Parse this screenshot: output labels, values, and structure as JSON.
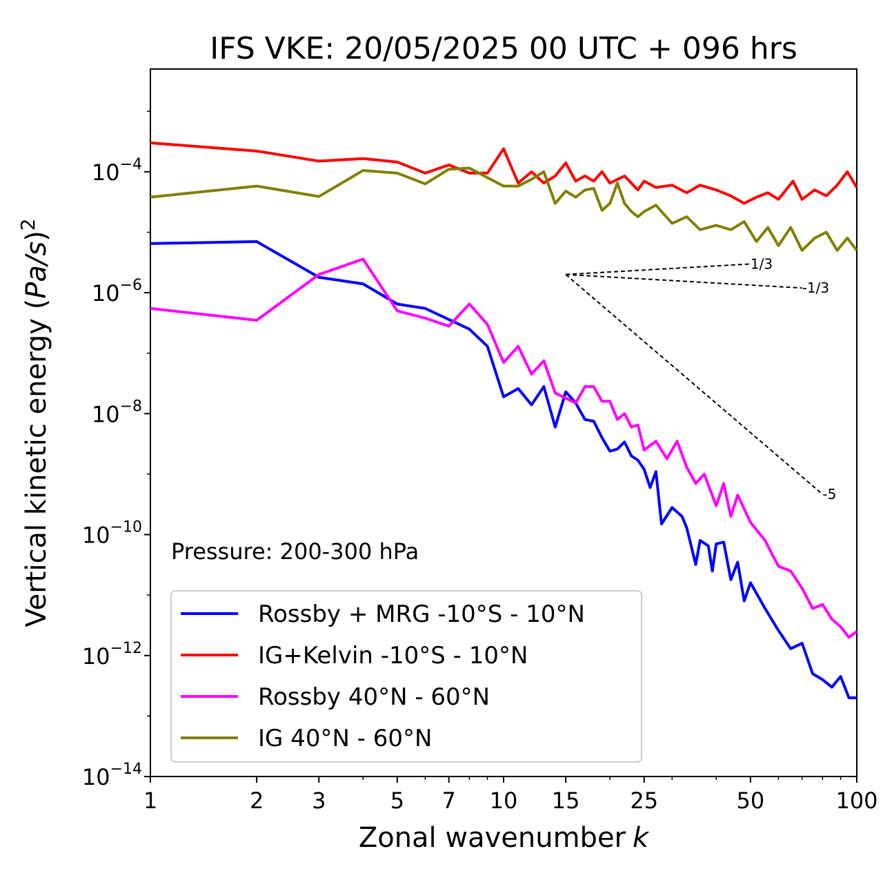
{
  "chart_data": {
    "type": "line",
    "title": "IFS VKE: 20/05/2025 00 UTC + 096 hrs",
    "xlabel": "Zonal wavenumber",
    "xlabel_var": "k",
    "ylabel": "Vertical kinetic energy (",
    "ylabel_var": "Pa/s",
    "ylabel_close": ")",
    "ylabel_power": "2",
    "x_scale": "log",
    "y_scale": "log",
    "xlim": [
      1,
      100
    ],
    "ylim": [
      1e-14,
      0.005
    ],
    "x_ticks": [
      1,
      2,
      3,
      5,
      7,
      10,
      15,
      25,
      50,
      100
    ],
    "x_tick_labels": [
      "1",
      "2",
      "3",
      "5",
      "7",
      "10",
      "15",
      "25",
      "50",
      "100"
    ],
    "y_ticks": [
      0.0001,
      1e-06,
      1e-08,
      1e-10,
      1e-12,
      1e-14
    ],
    "y_tick_base": "10",
    "y_tick_exponents": [
      "−4",
      "−6",
      "−8",
      "−10",
      "−12",
      "−14"
    ],
    "grid": false,
    "legend_position": "lower-left",
    "annotation": "Pressure: 200-300 hPa",
    "reference_slopes": [
      {
        "label": "1/3",
        "slope": 0.3333,
        "x_start": 15,
        "x_end": 50,
        "y_start": 2e-06
      },
      {
        "label": "-1/3",
        "slope": -0.3333,
        "x_start": 15,
        "x_end": 70,
        "y_start": 2e-06
      },
      {
        "label": "-5",
        "slope": -5,
        "x_start": 15,
        "x_end": 80,
        "y_start": 2e-06
      }
    ],
    "series": [
      {
        "name": "Rossby + MRG -10°S - 10°N",
        "color": "#0000ff",
        "points": [
          [
            1,
            6.5e-06
          ],
          [
            2,
            7e-06
          ],
          [
            3,
            1.8e-06
          ],
          [
            4,
            1.4e-06
          ],
          [
            5,
            6.5e-07
          ],
          [
            6,
            5.5e-07
          ],
          [
            7,
            3.6e-07
          ],
          [
            8,
            2.5e-07
          ],
          [
            9,
            1.3e-07
          ],
          [
            10,
            1.9e-08
          ],
          [
            11,
            2.6e-08
          ],
          [
            12,
            1.4e-08
          ],
          [
            13,
            2.8e-08
          ],
          [
            14,
            6e-09
          ],
          [
            15,
            2.3e-08
          ],
          [
            16,
            1.5e-08
          ],
          [
            17,
            8e-09
          ],
          [
            18,
            7.5e-09
          ],
          [
            19,
            4e-09
          ],
          [
            20,
            2.4e-09
          ],
          [
            21,
            2.6e-09
          ],
          [
            22,
            3.4e-09
          ],
          [
            23,
            2e-09
          ],
          [
            24,
            1.7e-09
          ],
          [
            25,
            1.2e-09
          ],
          [
            26,
            6e-10
          ],
          [
            27,
            1.1e-09
          ],
          [
            28,
            1.5e-10
          ],
          [
            30,
            2.8e-10
          ],
          [
            32,
            2e-10
          ],
          [
            33,
            1.3e-10
          ],
          [
            35,
            3.2e-11
          ],
          [
            36,
            8e-11
          ],
          [
            38,
            6.5e-11
          ],
          [
            39,
            2.5e-11
          ],
          [
            40,
            7e-11
          ],
          [
            42,
            7.5e-11
          ],
          [
            44,
            1.8e-11
          ],
          [
            46,
            3.5e-11
          ],
          [
            48,
            8e-12
          ],
          [
            50,
            1.6e-11
          ],
          [
            55,
            6e-12
          ],
          [
            60,
            2.6e-12
          ],
          [
            65,
            1.3e-12
          ],
          [
            70,
            1.6e-12
          ],
          [
            75,
            5e-13
          ],
          [
            80,
            4e-13
          ],
          [
            85,
            3e-13
          ],
          [
            90,
            4.5e-13
          ],
          [
            95,
            2e-13
          ],
          [
            100,
            2e-13
          ]
        ]
      },
      {
        "name": "IG+Kelvin -10°S - 10°N",
        "color": "#ff0000",
        "points": [
          [
            1,
            0.0003
          ],
          [
            2,
            0.00022
          ],
          [
            3,
            0.00015
          ],
          [
            4,
            0.000165
          ],
          [
            5,
            0.000145
          ],
          [
            6,
            9.5e-05
          ],
          [
            7,
            0.00013
          ],
          [
            8,
            9.5e-05
          ],
          [
            9,
            9.5e-05
          ],
          [
            10,
            0.00024
          ],
          [
            11,
            6.5e-05
          ],
          [
            12,
            0.0001
          ],
          [
            13,
            6.5e-05
          ],
          [
            14,
            8.5e-05
          ],
          [
            15,
            0.00014
          ],
          [
            16,
            7e-05
          ],
          [
            17,
            8.5e-05
          ],
          [
            18,
            7e-05
          ],
          [
            19,
            0.0001
          ],
          [
            20,
            6.5e-05
          ],
          [
            22,
            8.5e-05
          ],
          [
            23,
            6.5e-05
          ],
          [
            24,
            5e-05
          ],
          [
            25,
            7e-05
          ],
          [
            27,
            5.5e-05
          ],
          [
            30,
            6e-05
          ],
          [
            33,
            4.5e-05
          ],
          [
            36,
            6e-05
          ],
          [
            40,
            5e-05
          ],
          [
            44,
            4e-05
          ],
          [
            48,
            3e-05
          ],
          [
            52,
            3.8e-05
          ],
          [
            56,
            4.5e-05
          ],
          [
            60,
            3.5e-05
          ],
          [
            66,
            7e-05
          ],
          [
            70,
            3.5e-05
          ],
          [
            76,
            5e-05
          ],
          [
            82,
            4e-05
          ],
          [
            88,
            6e-05
          ],
          [
            94,
            0.0001
          ],
          [
            100,
            5.5e-05
          ]
        ]
      },
      {
        "name": "Rossby 40°N - 60°N",
        "color": "#ff00ff",
        "points": [
          [
            1,
            5.5e-07
          ],
          [
            2,
            3.5e-07
          ],
          [
            3,
            2e-06
          ],
          [
            4,
            3.6e-06
          ],
          [
            5,
            5e-07
          ],
          [
            6,
            3.8e-07
          ],
          [
            7,
            2.8e-07
          ],
          [
            8,
            6.5e-07
          ],
          [
            9,
            3e-07
          ],
          [
            10,
            7e-08
          ],
          [
            11,
            1.3e-07
          ],
          [
            12,
            4.5e-08
          ],
          [
            13,
            7.5e-08
          ],
          [
            14,
            2.2e-08
          ],
          [
            15,
            1.8e-08
          ],
          [
            16,
            1.5e-08
          ],
          [
            17,
            2.8e-08
          ],
          [
            18,
            2.8e-08
          ],
          [
            19,
            1.6e-08
          ],
          [
            20,
            1.6e-08
          ],
          [
            21,
            8e-09
          ],
          [
            22,
            1e-08
          ],
          [
            23,
            6e-09
          ],
          [
            24,
            6.5e-09
          ],
          [
            25,
            2.5e-09
          ],
          [
            27,
            3.5e-09
          ],
          [
            29,
            1.8e-09
          ],
          [
            31,
            3.5e-09
          ],
          [
            33,
            1.3e-09
          ],
          [
            35,
            7e-10
          ],
          [
            37,
            1e-09
          ],
          [
            40,
            3e-10
          ],
          [
            42,
            7e-10
          ],
          [
            44,
            2e-10
          ],
          [
            46,
            4.5e-10
          ],
          [
            50,
            1.6e-10
          ],
          [
            55,
            8e-11
          ],
          [
            60,
            3e-11
          ],
          [
            65,
            2.5e-11
          ],
          [
            70,
            1.3e-11
          ],
          [
            75,
            6e-12
          ],
          [
            80,
            7e-12
          ],
          [
            85,
            4e-12
          ],
          [
            90,
            3e-12
          ],
          [
            95,
            2e-12
          ],
          [
            100,
            2.5e-12
          ]
        ]
      },
      {
        "name": "IG 40°N - 60°N",
        "color": "#808000",
        "points": [
          [
            1,
            3.8e-05
          ],
          [
            2,
            5.8e-05
          ],
          [
            3,
            3.9e-05
          ],
          [
            4,
            0.000105
          ],
          [
            5,
            9.5e-05
          ],
          [
            6,
            6.3e-05
          ],
          [
            7,
            0.00011
          ],
          [
            8,
            0.000115
          ],
          [
            9,
            8e-05
          ],
          [
            10,
            5.8e-05
          ],
          [
            11,
            5.8e-05
          ],
          [
            12,
            7.5e-05
          ],
          [
            13,
            0.0001
          ],
          [
            14,
            3e-05
          ],
          [
            15,
            4.8e-05
          ],
          [
            16,
            3.8e-05
          ],
          [
            17,
            5e-05
          ],
          [
            18,
            5.3e-05
          ],
          [
            19,
            2.3e-05
          ],
          [
            20,
            3e-05
          ],
          [
            21,
            6.5e-05
          ],
          [
            22,
            3e-05
          ],
          [
            23,
            2.2e-05
          ],
          [
            24,
            1.8e-05
          ],
          [
            25,
            2.2e-05
          ],
          [
            27,
            2.8e-05
          ],
          [
            30,
            1.4e-05
          ],
          [
            33,
            1.8e-05
          ],
          [
            36,
            1.1e-05
          ],
          [
            40,
            1.3e-05
          ],
          [
            44,
            1.1e-05
          ],
          [
            48,
            1.5e-05
          ],
          [
            52,
            7e-06
          ],
          [
            56,
            1.2e-05
          ],
          [
            60,
            6e-06
          ],
          [
            65,
            1.2e-05
          ],
          [
            70,
            5e-06
          ],
          [
            76,
            8e-06
          ],
          [
            82,
            1e-05
          ],
          [
            88,
            5e-06
          ],
          [
            94,
            8e-06
          ],
          [
            100,
            5e-06
          ]
        ]
      }
    ]
  }
}
